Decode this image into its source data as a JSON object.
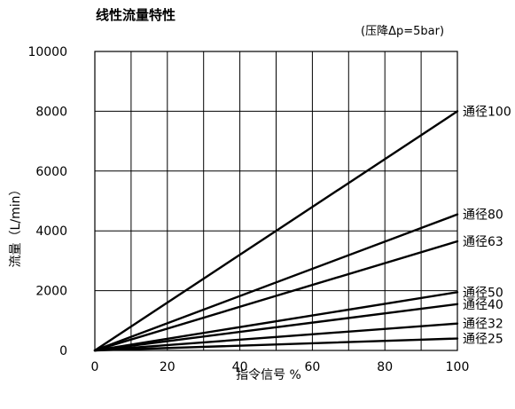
{
  "chart_data": {
    "type": "line",
    "title": "线性流量特性",
    "subtitle": "(压降Δp=5bar)",
    "xlabel": "指令信号 %",
    "ylabel": "流量（L/min）",
    "xlim": [
      0,
      100
    ],
    "ylim": [
      0,
      10000
    ],
    "x_ticks": [
      0,
      20,
      40,
      60,
      80,
      100
    ],
    "y_ticks": [
      0,
      2000,
      4000,
      6000,
      8000,
      10000
    ],
    "grid": true,
    "legend": "right-end-labels",
    "x": [
      0,
      100
    ],
    "series": [
      {
        "name": "通径100",
        "values": [
          0,
          8000
        ]
      },
      {
        "name": "通径80",
        "values": [
          0,
          4550
        ]
      },
      {
        "name": "通径63",
        "values": [
          0,
          3650
        ]
      },
      {
        "name": "通径50",
        "values": [
          0,
          1950
        ]
      },
      {
        "name": "通径40",
        "values": [
          0,
          1550
        ]
      },
      {
        "name": "通径32",
        "values": [
          0,
          900
        ]
      },
      {
        "name": "通径25",
        "values": [
          0,
          400
        ]
      }
    ]
  }
}
